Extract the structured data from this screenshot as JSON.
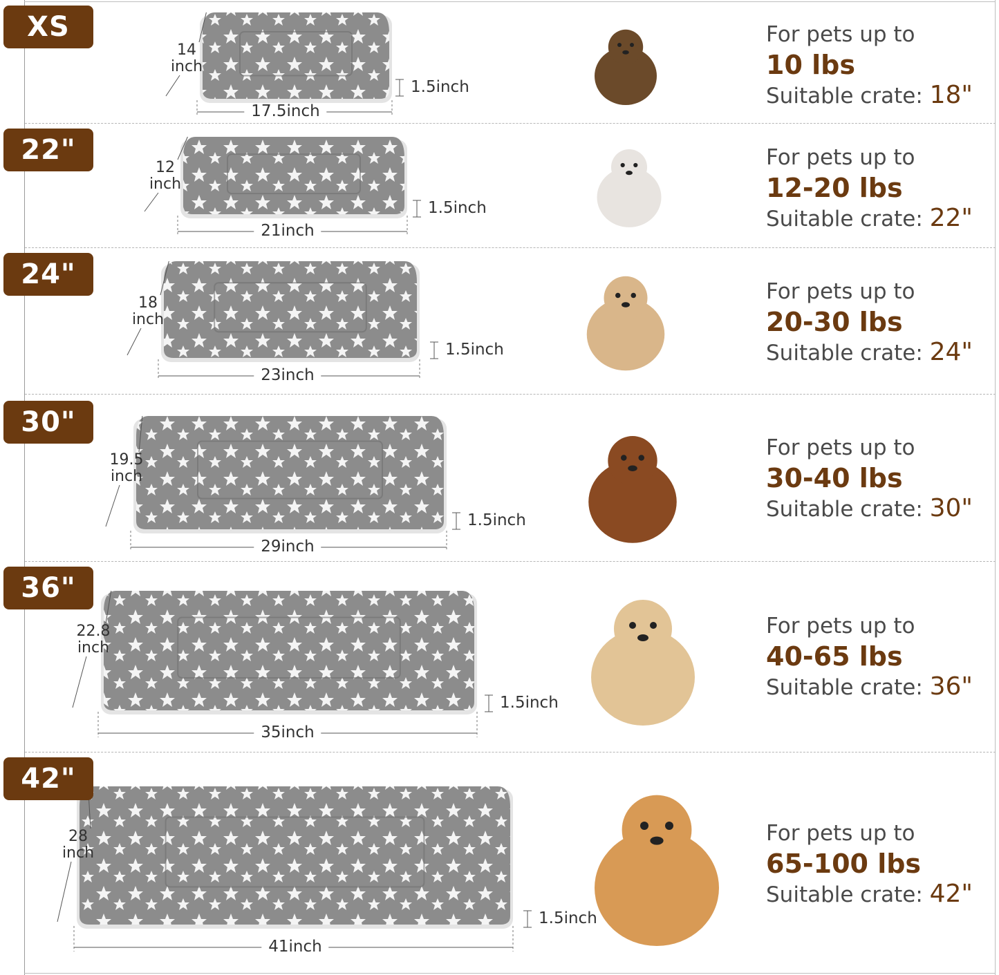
{
  "colors": {
    "badge": "#6b3a10",
    "accent_text": "#6b3a10",
    "body_text": "#4a4a4a",
    "mat_gray": "#8c8c8c",
    "mat_star": "#f4f4f4"
  },
  "common": {
    "pets_prefix": "For pets up to",
    "crate_prefix": "Suitable crate: ",
    "height_unit": "inch"
  },
  "rows": [
    {
      "badge": "XS",
      "width": "17.5inch",
      "height": "14",
      "thickness": "1.5inch",
      "weight": "10 lbs",
      "crate": "18\"",
      "animal": "yorkshire-terrier"
    },
    {
      "badge": "22\"",
      "width": "21inch",
      "height": "12",
      "thickness": "1.5inch",
      "weight": "12-20 lbs",
      "crate": "22\"",
      "animal": "ragdoll-cat"
    },
    {
      "badge": "24\"",
      "width": "23inch",
      "height": "18",
      "thickness": "1.5inch",
      "weight": "20-30 lbs",
      "crate": "24\"",
      "animal": "french-bulldog"
    },
    {
      "badge": "30\"",
      "width": "29inch",
      "height": "19.5",
      "thickness": "1.5inch",
      "weight": "30-40 lbs",
      "crate": "30\"",
      "animal": "dachshund"
    },
    {
      "badge": "36\"",
      "width": "35inch",
      "height": "22.8",
      "thickness": "1.5inch",
      "weight": "40-65 lbs",
      "crate": "36\"",
      "animal": "golden-retriever-sitting"
    },
    {
      "badge": "42\"",
      "width": "41inch",
      "height": "28",
      "thickness": "1.5inch",
      "weight": "65-100 lbs",
      "crate": "42\"",
      "animal": "golden-retriever-lying"
    }
  ]
}
